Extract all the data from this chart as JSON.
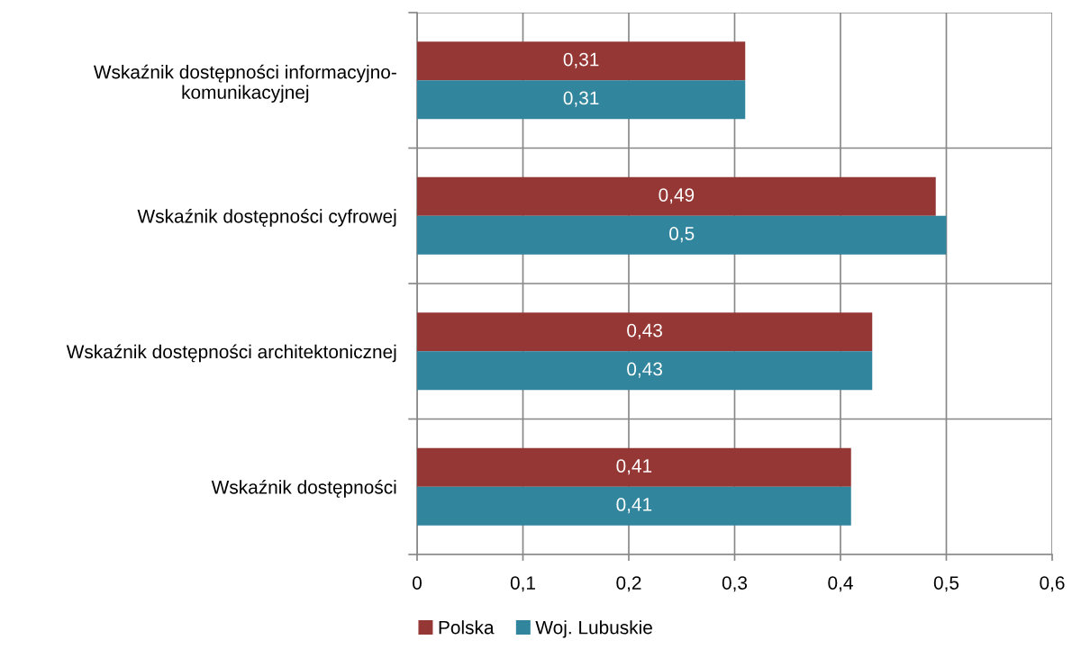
{
  "chart_data": {
    "type": "bar",
    "orientation": "horizontal",
    "categories": [
      "Wskaźnik dostępności informacyjno-komunikacyjnej",
      "Wskaźnik dostępności cyfrowej",
      "Wskaźnik dostępności architektonicznej",
      "Wskaźnik dostępności"
    ],
    "series": [
      {
        "name": "Polska",
        "color": "#953735",
        "values": [
          0.31,
          0.49,
          0.43,
          0.41
        ],
        "value_labels": [
          "0,31",
          "0,49",
          "0,43",
          "0,41"
        ]
      },
      {
        "name": "Woj. Lubuskie",
        "color": "#31859c",
        "values": [
          0.31,
          0.5,
          0.43,
          0.41
        ],
        "value_labels": [
          "0,31",
          "0,5",
          "0,43",
          "0,41"
        ]
      }
    ],
    "xlim": [
      0,
      0.6
    ],
    "xticks": [
      0,
      {
        "value": 0.1,
        "label": "0,1"
      },
      {
        "value": 0.2,
        "label": "0,2"
      },
      {
        "value": 0.3,
        "label": "0,3"
      },
      {
        "value": 0.4,
        "label": "0,4"
      },
      {
        "value": 0.5,
        "label": "0,5"
      },
      {
        "value": 0.6,
        "label": "0,6"
      }
    ],
    "grid": true,
    "legend": "bottom"
  }
}
